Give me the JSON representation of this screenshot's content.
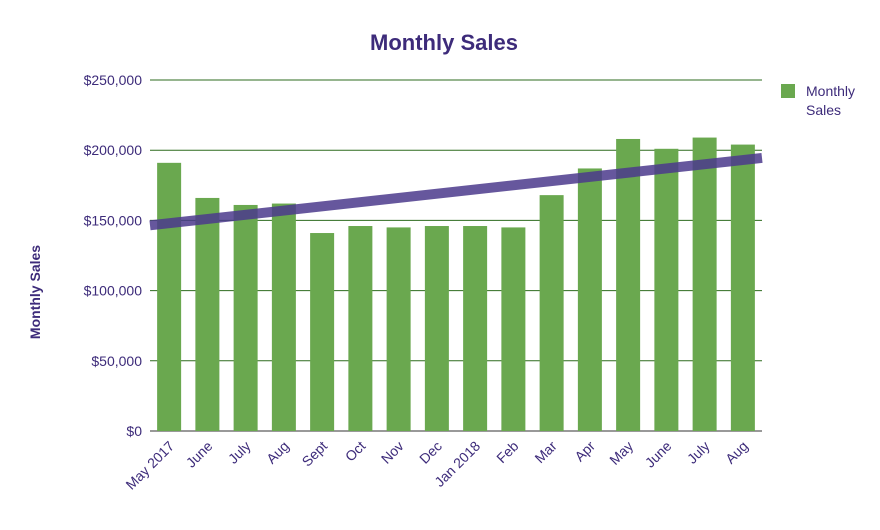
{
  "chart_data": {
    "type": "bar",
    "title": "Monthly Sales",
    "xlabel": "",
    "ylabel": "Monthly Sales",
    "categories": [
      "May 2017",
      "June",
      "July",
      "Aug",
      "Sept",
      "Oct",
      "Nov",
      "Dec",
      "Jan 2018",
      "Feb",
      "Mar",
      "Apr",
      "May",
      "June",
      "July",
      "Aug"
    ],
    "series": [
      {
        "name": "Monthly Sales",
        "values": [
          191000,
          166000,
          161000,
          162000,
          141000,
          146000,
          145000,
          146000,
          146000,
          145000,
          168000,
          187000,
          208000,
          201000,
          209000,
          204000
        ]
      }
    ],
    "trendline": {
      "start": 146500,
      "end": 194500
    },
    "ylim": [
      0,
      250000
    ],
    "yticks": [
      0,
      50000,
      100000,
      150000,
      200000,
      250000
    ],
    "ytick_labels": [
      "$0",
      "$50,000",
      "$100,000",
      "$150,000",
      "$200,000",
      "$250,000"
    ],
    "grid": true,
    "legend": "top-right",
    "colors": {
      "bar": "#6aa84f",
      "trend": "#4b3a8c",
      "grid": "#2e6b1f",
      "text": "#3d2b7a"
    }
  }
}
